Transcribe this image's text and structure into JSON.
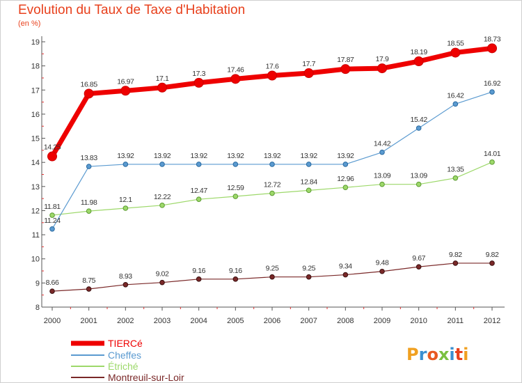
{
  "chart_data": {
    "type": "line",
    "title": "Evolution du Taux de Taxe d'Habitation",
    "subtitle": "(en %)",
    "xlabel": "",
    "ylabel": "",
    "x": [
      "2000",
      "2001",
      "2002",
      "2003",
      "2004",
      "2005",
      "2006",
      "2007",
      "2008",
      "2009",
      "2010",
      "2011",
      "2012"
    ],
    "ylim": [
      8,
      19
    ],
    "yticks": [
      "8",
      "9",
      "10",
      "11",
      "12",
      "13",
      "14",
      "15",
      "16",
      "17",
      "18",
      "19"
    ],
    "grid": false,
    "legend_position": "bottom-left",
    "series": [
      {
        "name": "TIERCé",
        "color": "#ee0000",
        "values": [
          14.25,
          16.85,
          16.97,
          17.1,
          17.3,
          17.46,
          17.6,
          17.7,
          17.87,
          17.9,
          18.19,
          18.55,
          18.73
        ],
        "labels": [
          "14.25",
          "16.85",
          "16.97",
          "17.1",
          "17.3",
          "17.46",
          "17.6",
          "17.7",
          "17.87",
          "17.9",
          "18.19",
          "18.55",
          "18.73"
        ]
      },
      {
        "name": "Cheffes",
        "color": "#5a9ad0",
        "values": [
          11.24,
          13.83,
          13.92,
          13.92,
          13.92,
          13.92,
          13.92,
          13.92,
          13.92,
          14.42,
          15.42,
          16.42,
          16.92
        ],
        "labels": [
          "11.24",
          "13.83",
          "13.92",
          "13.92",
          "13.92",
          "13.92",
          "13.92",
          "13.92",
          "13.92",
          "14.42",
          "15.42",
          "16.42",
          "16.92"
        ]
      },
      {
        "name": "Étriché",
        "color": "#9dd86a",
        "values": [
          11.81,
          11.98,
          12.1,
          12.22,
          12.47,
          12.59,
          12.72,
          12.84,
          12.96,
          13.09,
          13.09,
          13.35,
          14.01
        ],
        "labels": [
          "11.81",
          "11.98",
          "12.1",
          "12.22",
          "12.47",
          "12.59",
          "12.72",
          "12.84",
          "12.96",
          "13.09",
          "13.09",
          "13.35",
          "14.01"
        ]
      },
      {
        "name": "Montreuil-sur-Loir",
        "color": "#7a2828",
        "values": [
          8.66,
          8.75,
          8.93,
          9.02,
          9.16,
          9.16,
          9.25,
          9.25,
          9.34,
          9.48,
          9.67,
          9.82,
          9.82
        ],
        "labels": [
          "8.66",
          "8.75",
          "8.93",
          "9.02",
          "9.16",
          "9.16",
          "9.25",
          "9.25",
          "9.34",
          "9.48",
          "9.67",
          "9.82",
          "9.82"
        ]
      }
    ]
  },
  "logo": {
    "text": "Proxiti"
  }
}
